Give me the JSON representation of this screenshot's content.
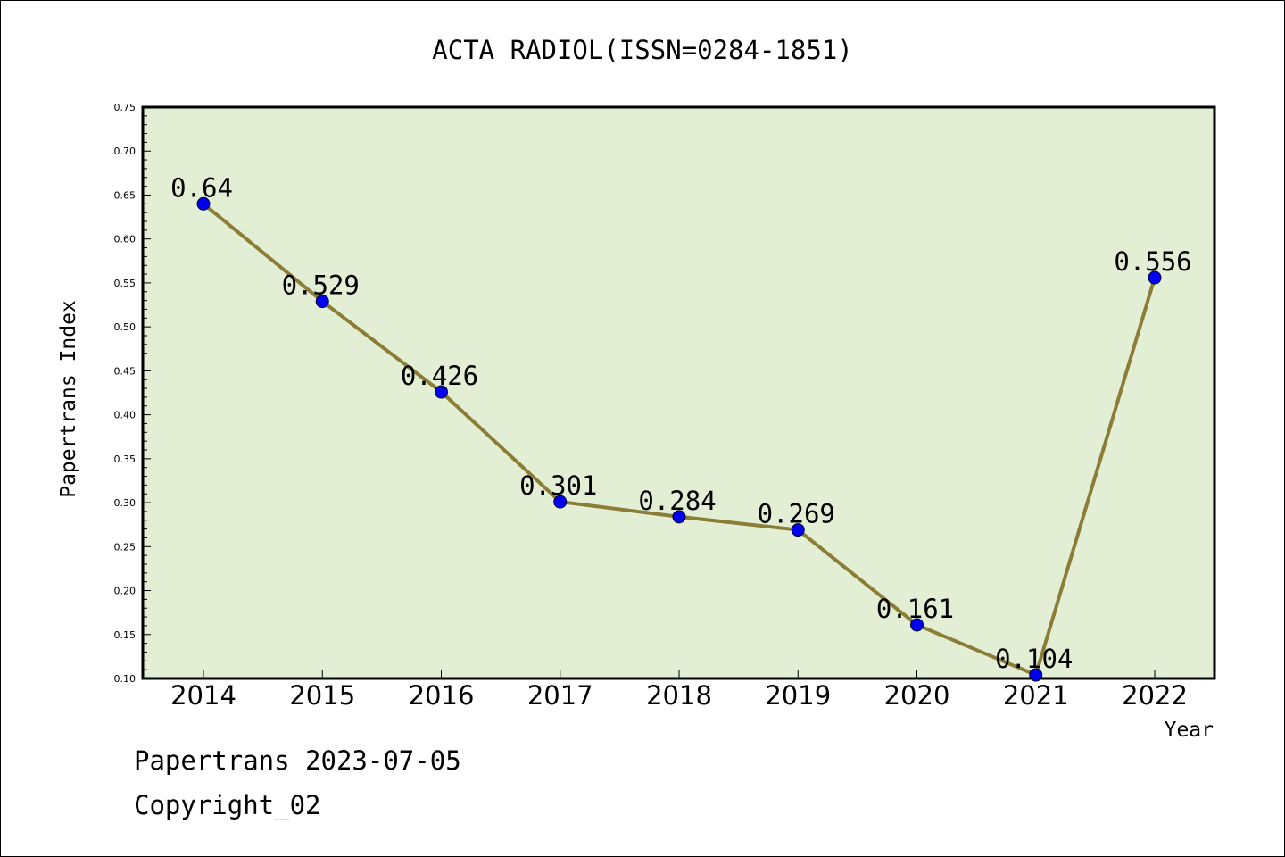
{
  "footer": {
    "line1": "Papertrans 2023-07-05",
    "line2": "Copyright_02"
  },
  "chart_data": {
    "type": "line",
    "title": "ACTA RADIOL(ISSN=0284-1851)",
    "xlabel": "Year",
    "ylabel": "Papertrans Index",
    "categories": [
      "2014",
      "2015",
      "2016",
      "2017",
      "2018",
      "2019",
      "2020",
      "2021",
      "2022"
    ],
    "values": [
      0.64,
      0.529,
      0.426,
      0.301,
      0.284,
      0.269,
      0.161,
      0.104,
      0.556
    ],
    "data_labels": [
      "0.64",
      "0.529",
      "0.426",
      "0.301",
      "0.284",
      "0.269",
      "0.161",
      "0.104",
      "0.556"
    ],
    "ylim": [
      0.1,
      0.75
    ],
    "yticks": [
      "0.10",
      "0.15",
      "0.20",
      "0.25",
      "0.30",
      "0.35",
      "0.40",
      "0.45",
      "0.50",
      "0.55",
      "0.60",
      "0.65",
      "0.70",
      "0.75"
    ],
    "grid": false,
    "colors": {
      "plot_background": "#e2efd5",
      "line": "#8b7d35",
      "marker": "#0000ee"
    }
  }
}
